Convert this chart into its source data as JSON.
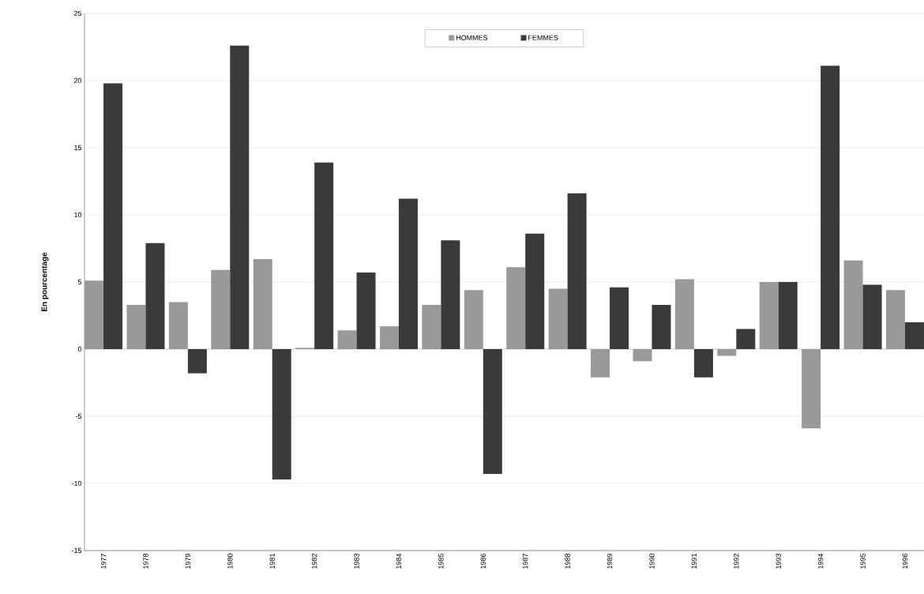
{
  "chart_data": {
    "type": "bar",
    "ylabel": "En pourcentage",
    "categories": [
      "1977",
      "1978",
      "1979",
      "1980",
      "1981",
      "1982",
      "1983",
      "1984",
      "1985",
      "1986",
      "1987",
      "1988",
      "1989",
      "1990",
      "1991",
      "1992",
      "1993",
      "1994",
      "1995",
      "1996"
    ],
    "series": [
      {
        "name": "HOMMES",
        "color": "#999999",
        "values": [
          5.1,
          3.3,
          3.5,
          5.9,
          6.7,
          0.1,
          1.4,
          1.7,
          3.3,
          4.4,
          6.1,
          4.5,
          -2.1,
          -0.9,
          5.2,
          -0.5,
          5.0,
          -5.9,
          6.6,
          4.4
        ]
      },
      {
        "name": "FEMMES",
        "color": "#3a3a3a",
        "values": [
          19.8,
          7.9,
          -1.8,
          22.6,
          -9.7,
          13.9,
          5.7,
          11.2,
          8.1,
          -9.3,
          8.6,
          11.6,
          4.6,
          3.3,
          -2.1,
          1.5,
          5.0,
          21.1,
          4.8,
          2.0
        ]
      }
    ],
    "ylim": [
      -15,
      25
    ],
    "yticks": [
      -15,
      -10,
      -5,
      0,
      5,
      10,
      15,
      20,
      25
    ],
    "grid": "y",
    "legend": "top"
  }
}
